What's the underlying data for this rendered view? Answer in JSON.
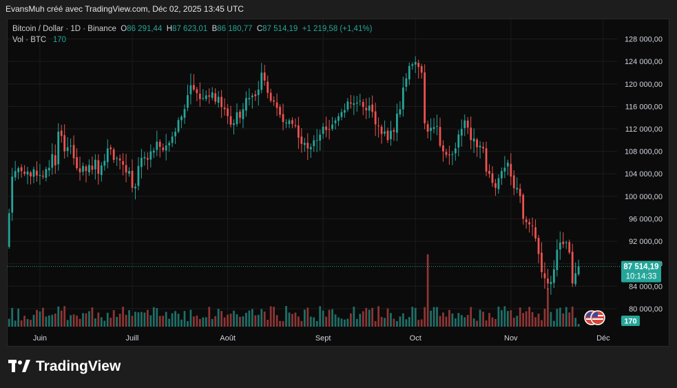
{
  "header": {
    "attribution": "EvansMuh créé avec TradingView.com, Déc 02, 2025 13:45 UTC"
  },
  "legend": {
    "symbol": "Bitcoin / Dollar · 1D · Binance",
    "open_key": "O",
    "open_value": "86 291,44",
    "high_key": "H",
    "high_value": "87 623,01",
    "low_key": "B",
    "low_value": "86 180,77",
    "close_key": "C",
    "close_value": "87 514,19",
    "change": "+1 219,58 (+1,41%)",
    "volume_label": "Vol · BTC",
    "volume_value": "170"
  },
  "price_tag": {
    "price": "87 514,19",
    "countdown": "10:14:33"
  },
  "volume_tag": "170",
  "footer": {
    "brand": "TradingView"
  },
  "colors": {
    "up": "#26a69a",
    "down": "#ef5350",
    "up_volume": "#1f6f67",
    "down_volume": "#8e3535",
    "background": "#0b0b0b",
    "grid": "#1c1c1c",
    "axis_text": "#d1d4dc"
  },
  "chart_data": {
    "type": "candlestick",
    "symbol": "Bitcoin / Dollar",
    "interval": "1D",
    "exchange": "Binance",
    "y_ticks": [
      "80 000,00",
      "84 000,00",
      "88 000,00",
      "92 000,00",
      "96 000,00",
      "100 000,00",
      "104 000,00",
      "108 000,00",
      "112 000,00",
      "116 000,00",
      "120 000,00",
      "124 000,00",
      "128 000,00"
    ],
    "y_tick_values": [
      80000,
      84000,
      88000,
      92000,
      96000,
      100000,
      104000,
      108000,
      112000,
      116000,
      120000,
      124000,
      128000
    ],
    "ylim": [
      76800,
      131500
    ],
    "x_labels": [
      "Juin",
      "Juill",
      "Août",
      "Sept",
      "Oct",
      "Nov",
      "Déc"
    ],
    "x_label_days": [
      10,
      40,
      71,
      102,
      132,
      163,
      193
    ],
    "days_shown": 198,
    "last_price": 87514.19,
    "anchors": [
      [
        0,
        97000
      ],
      [
        1,
        103500
      ],
      [
        2,
        104500
      ],
      [
        3,
        105000
      ],
      [
        5,
        104000
      ],
      [
        8,
        104800
      ],
      [
        11,
        103500
      ],
      [
        14,
        107500
      ],
      [
        15,
        105500
      ],
      [
        16,
        111500
      ],
      [
        18,
        108000
      ],
      [
        20,
        109000
      ],
      [
        22,
        105000
      ],
      [
        25,
        104500
      ],
      [
        28,
        106500
      ],
      [
        29,
        104000
      ],
      [
        32,
        108500
      ],
      [
        35,
        106800
      ],
      [
        39,
        104500
      ],
      [
        40,
        101500
      ],
      [
        44,
        107000
      ],
      [
        46,
        108000
      ],
      [
        49,
        108800
      ],
      [
        52,
        109500
      ],
      [
        54,
        111500
      ],
      [
        58,
        118000
      ],
      [
        60,
        119000
      ],
      [
        63,
        117500
      ],
      [
        66,
        118500
      ],
      [
        70,
        115500
      ],
      [
        73,
        113000
      ],
      [
        76,
        115500
      ],
      [
        78,
        117500
      ],
      [
        81,
        119000
      ],
      [
        82,
        122000
      ],
      [
        85,
        117000
      ],
      [
        88,
        114500
      ],
      [
        91,
        113500
      ],
      [
        93,
        112500
      ],
      [
        96,
        109500
      ],
      [
        97,
        108500
      ],
      [
        100,
        110000
      ],
      [
        103,
        111800
      ],
      [
        106,
        113500
      ],
      [
        108,
        115000
      ],
      [
        111,
        116500
      ],
      [
        114,
        117000
      ],
      [
        118,
        115000
      ],
      [
        120,
        112500
      ],
      [
        123,
        110000
      ],
      [
        125,
        111500
      ],
      [
        127,
        115500
      ],
      [
        129,
        121000
      ],
      [
        131,
        123500
      ],
      [
        133,
        123000
      ],
      [
        134,
        122000
      ],
      [
        135,
        113000
      ],
      [
        136,
        111500
      ],
      [
        139,
        112500
      ],
      [
        141,
        108000
      ],
      [
        144,
        107500
      ],
      [
        146,
        111000
      ],
      [
        148,
        113500
      ],
      [
        150,
        110000
      ],
      [
        153,
        109000
      ],
      [
        156,
        104000
      ],
      [
        158,
        101500
      ],
      [
        160,
        104500
      ],
      [
        162,
        106000
      ],
      [
        163,
        103500
      ],
      [
        165,
        101500
      ],
      [
        167,
        96000
      ],
      [
        169,
        95000
      ],
      [
        171,
        92500
      ],
      [
        173,
        86500
      ],
      [
        175,
        84500
      ],
      [
        177,
        87000
      ],
      [
        178,
        90500
      ],
      [
        180,
        91500
      ],
      [
        182,
        90000
      ],
      [
        183,
        84500
      ],
      [
        184,
        86300
      ],
      [
        185,
        87514
      ]
    ]
  }
}
